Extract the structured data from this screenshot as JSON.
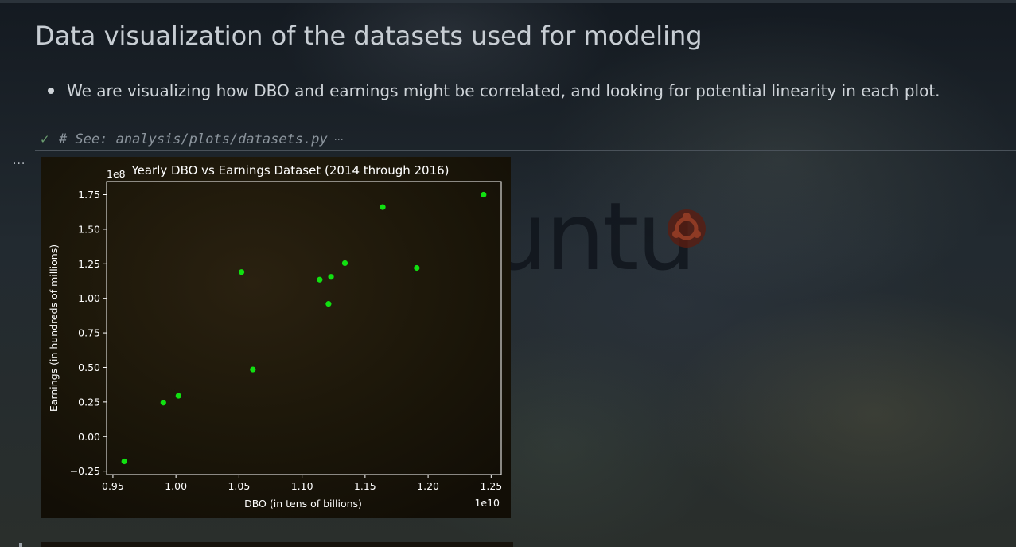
{
  "notebook": {
    "heading": "Data visualization of the datasets used for modeling",
    "bullet": "We are visualizing how DBO and earnings might be correlated, and looking for potential linearity in each plot.",
    "code_cell": {
      "status_icon": "check-icon",
      "source": "# See: analysis/plots/datasets.py",
      "collapse_indicator": "⋯"
    },
    "output_menu": "..."
  },
  "wallpaper": {
    "logo_text": "ubuntu",
    "accent_color": "#7a2b1c"
  },
  "chart_data": {
    "type": "scatter",
    "title": "Yearly DBO vs Earnings Dataset (2014 through 2016)",
    "xlabel": "DBO (in tens of billions)",
    "ylabel": "Earnings (in hundreds of millions)",
    "x_offset_label": "1e10",
    "y_offset_label": "1e8",
    "xlim": [
      0.945,
      1.258
    ],
    "ylim": [
      -0.275,
      1.845
    ],
    "xticks": [
      "0.95",
      "1.00",
      "1.05",
      "1.10",
      "1.15",
      "1.20",
      "1.25"
    ],
    "yticks": [
      "−0.25",
      "0.00",
      "0.25",
      "0.50",
      "0.75",
      "1.00",
      "1.25",
      "1.50",
      "1.75"
    ],
    "marker_color": "#11e011",
    "points": [
      {
        "x": 0.959,
        "y": -0.18
      },
      {
        "x": 0.99,
        "y": 0.245
      },
      {
        "x": 1.002,
        "y": 0.295
      },
      {
        "x": 1.052,
        "y": 1.19
      },
      {
        "x": 1.061,
        "y": 0.485
      },
      {
        "x": 1.114,
        "y": 1.135
      },
      {
        "x": 1.121,
        "y": 0.96
      },
      {
        "x": 1.123,
        "y": 1.155
      },
      {
        "x": 1.134,
        "y": 1.255
      },
      {
        "x": 1.164,
        "y": 1.66
      },
      {
        "x": 1.191,
        "y": 1.22
      },
      {
        "x": 1.244,
        "y": 1.75
      }
    ],
    "grid": false
  }
}
